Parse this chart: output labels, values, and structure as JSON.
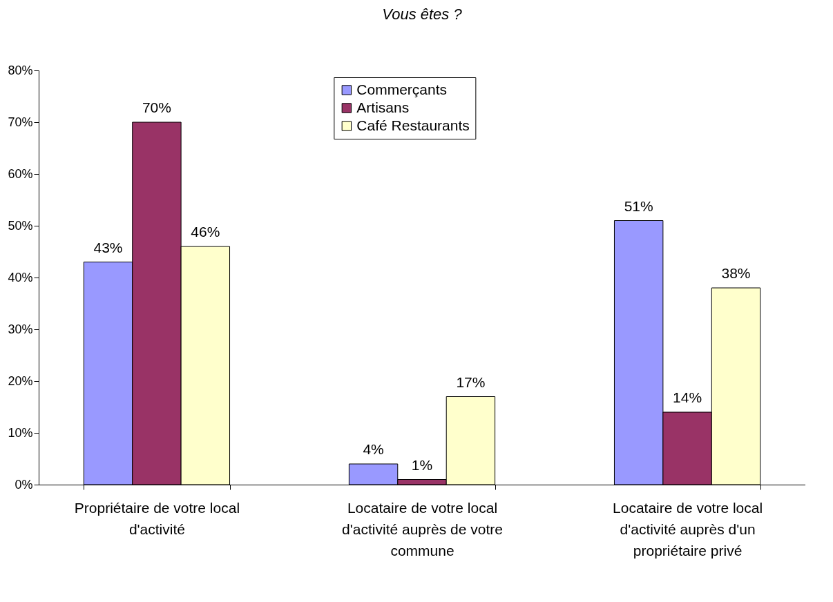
{
  "chart_data": {
    "type": "bar",
    "title": "Vous êtes ?",
    "categories": [
      "Propriétaire de votre local d'activité",
      "Locataire de votre local d'activité auprès de votre commune",
      "Locataire de votre local d'activité auprès d'un propriétaire privé"
    ],
    "series": [
      {
        "name": "Commerçants",
        "color": "#9999ff",
        "values": [
          43,
          4,
          51
        ],
        "value_labels": [
          "43%",
          "4%",
          "51%"
        ]
      },
      {
        "name": "Artisans",
        "color": "#993366",
        "values": [
          70,
          1,
          14
        ],
        "value_labels": [
          "70%",
          "1%",
          "14%"
        ]
      },
      {
        "name": "Café Restaurants",
        "color": "#ffffcc",
        "values": [
          46,
          17,
          38
        ],
        "value_labels": [
          "46%",
          "17%",
          "38%"
        ]
      }
    ],
    "ylim": [
      0,
      80
    ],
    "yticks": [
      {
        "value": 0,
        "label": "0%"
      },
      {
        "value": 10,
        "label": "10%"
      },
      {
        "value": 20,
        "label": "20%"
      },
      {
        "value": 30,
        "label": "30%"
      },
      {
        "value": 40,
        "label": "40%"
      },
      {
        "value": 50,
        "label": "50%"
      },
      {
        "value": 60,
        "label": "60%"
      },
      {
        "value": 70,
        "label": "70%"
      },
      {
        "value": 80,
        "label": "80%"
      }
    ],
    "grid": false,
    "legend": "top"
  }
}
